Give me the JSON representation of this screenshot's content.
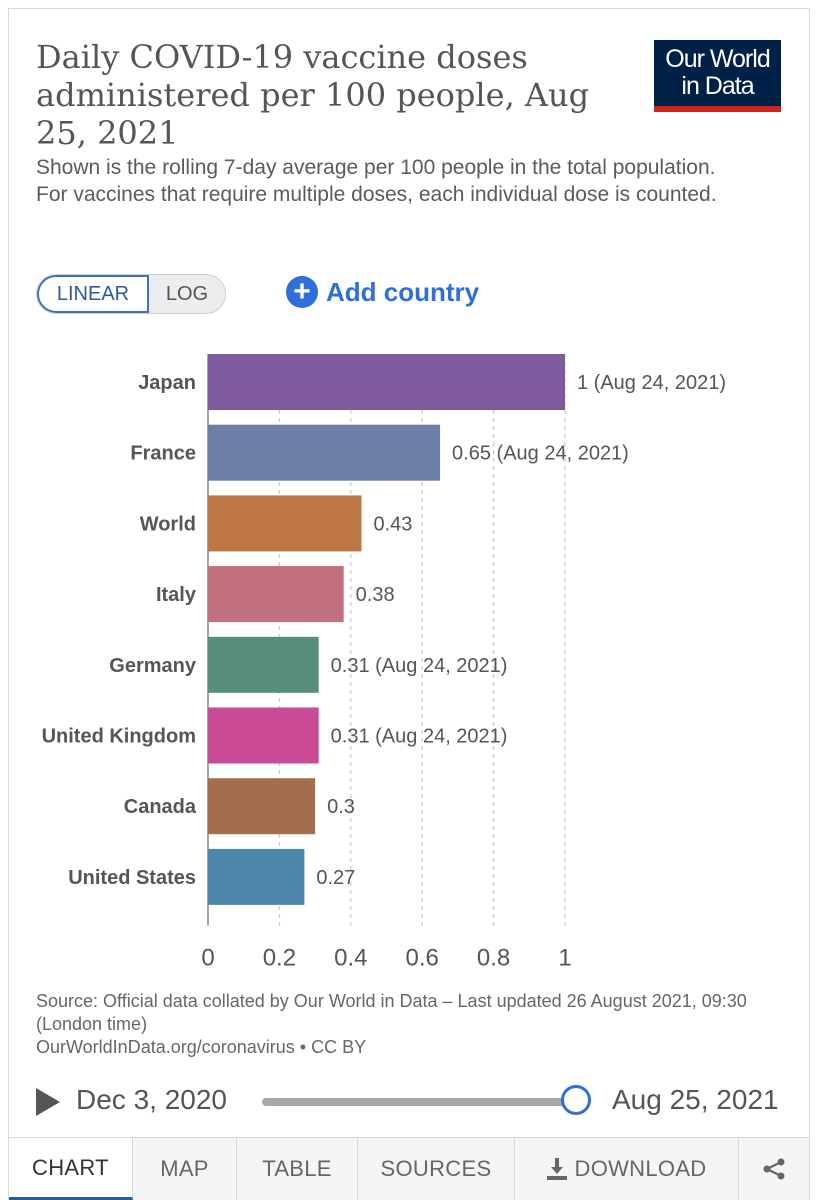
{
  "header": {
    "title": "Daily COVID-19 vaccine doses administered per 100 people, Aug 25, 2021",
    "subtitle": "Shown is the rolling 7-day average per 100 people in the total population. For vaccines that require multiple doses, each individual dose is counted.",
    "logo_line1": "Our World",
    "logo_line2": "in Data"
  },
  "controls": {
    "linear_label": "LINEAR",
    "log_label": "LOG",
    "add_country_label": "Add country"
  },
  "chart_data": {
    "type": "bar",
    "orientation": "horizontal",
    "categories": [
      "Japan",
      "France",
      "World",
      "Italy",
      "Germany",
      "United Kingdom",
      "Canada",
      "United States"
    ],
    "values": [
      1,
      0.65,
      0.43,
      0.38,
      0.31,
      0.31,
      0.3,
      0.27
    ],
    "value_labels": [
      "1 (Aug 24, 2021)",
      "0.65 (Aug 24, 2021)",
      "0.43",
      "0.38",
      "0.31 (Aug 24, 2021)",
      "0.31 (Aug 24, 2021)",
      "0.3",
      "0.27"
    ],
    "colors": [
      "#7f5ba0",
      "#6c7fa6",
      "#bd7744",
      "#c0717d",
      "#588f7c",
      "#c94b95",
      "#a36e4e",
      "#4d88aa"
    ],
    "xlim": [
      0,
      1
    ],
    "xticks": [
      0,
      0.2,
      0.4,
      0.6,
      0.8,
      1
    ],
    "xtick_labels": [
      "0",
      "0.2",
      "0.4",
      "0.6",
      "0.8",
      "1"
    ],
    "grid": true
  },
  "source": {
    "line1": "Source: Official data collated by Our World in Data – Last updated 26 August 2021, 09:30 (London time)",
    "line2": "OurWorldInData.org/coronavirus • CC BY"
  },
  "timeline": {
    "start_date": "Dec 3, 2020",
    "end_date": "Aug 25, 2021"
  },
  "tabs": {
    "chart": "CHART",
    "map": "MAP",
    "table": "TABLE",
    "sources": "SOURCES",
    "download": "DOWNLOAD"
  },
  "colors": {
    "accent": "#2f6fdb",
    "logo_bg": "#002147",
    "logo_bar": "#ce261e"
  }
}
